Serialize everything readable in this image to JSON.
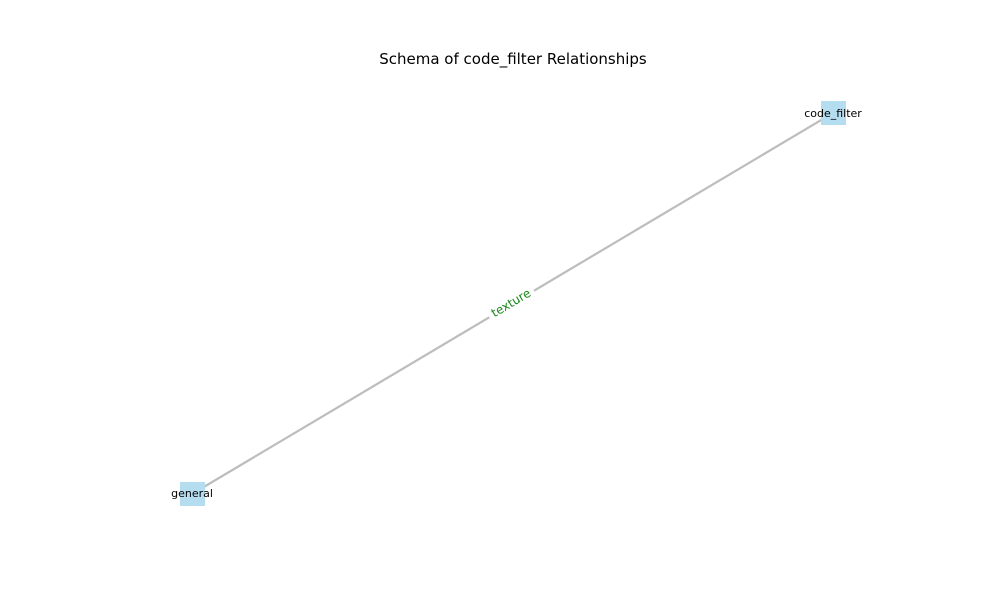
{
  "title": "Schema of code_filter Relationships",
  "colors": {
    "node_fill": "#b5ddf0",
    "edge": "#bdbdbd",
    "edge_label": "#1a8a1a",
    "background": "#ffffff"
  },
  "nodes": [
    {
      "id": "code_filter",
      "label": "code_filter",
      "shape": "square"
    },
    {
      "id": "general",
      "label": "general",
      "shape": "square"
    }
  ],
  "edges": [
    {
      "source": "general",
      "target": "code_filter",
      "label": "texture"
    }
  ]
}
